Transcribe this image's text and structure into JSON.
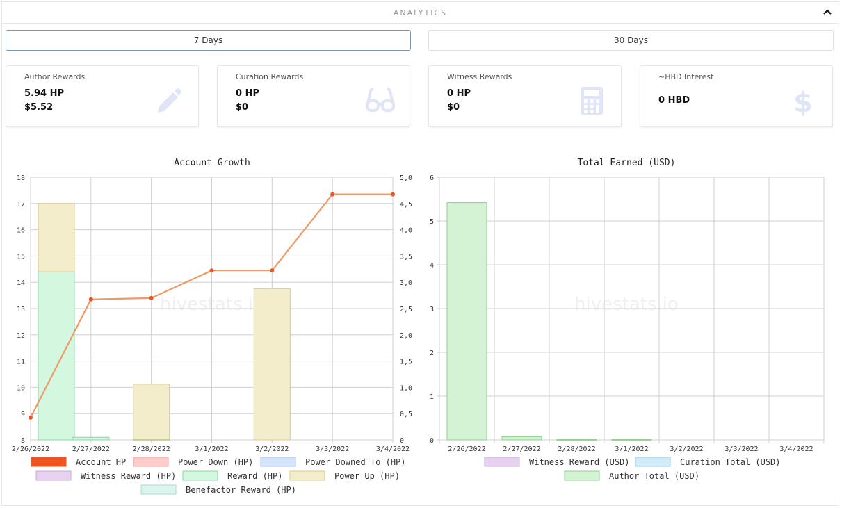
{
  "header": {
    "title": "ANALYTICS"
  },
  "tabs": [
    {
      "label": "7 Days",
      "active": true
    },
    {
      "label": "30 Days",
      "active": false
    }
  ],
  "cards": [
    {
      "label": "Author Rewards",
      "value1": "5.94 HP",
      "value2": "$5.52",
      "icon": "pencil-icon"
    },
    {
      "label": "Curation Rewards",
      "value1": "0 HP",
      "value2": "$0",
      "icon": "glasses-icon"
    },
    {
      "label": "Witness Rewards",
      "value1": "0 HP",
      "value2": "$0",
      "icon": "calculator-icon"
    },
    {
      "label": "~HBD Interest",
      "value1": "0 HBD",
      "icon": "dollar-icon"
    }
  ],
  "watermark": "hivestats.io",
  "colors": {
    "accent": "#7c95b5",
    "card_icon": "#dfe4f7",
    "account_hp": "#ee5522",
    "line": "#ee9966",
    "power_down": "#ffcccc",
    "power_downed_to": "#d6e4fb",
    "witness_reward": "#e6d2ee",
    "reward": "#d4f7e0",
    "power_up": "#f3edcc",
    "benefactor": "#dcf5ef",
    "curation_total": "#d0ecf8",
    "author_total": "#d4f2d4"
  },
  "chart_data": [
    {
      "type": "bar",
      "title": "Account Growth",
      "categories": [
        "2/26/2022",
        "2/27/2022",
        "2/28/2022",
        "3/1/2022",
        "3/2/2022",
        "3/3/2022",
        "3/4/2022"
      ],
      "y_left": {
        "min": 8,
        "max": 18,
        "ticks": [
          "18",
          "17",
          "16",
          "15",
          "14",
          "13",
          "12",
          "11",
          "10",
          "9",
          "8"
        ]
      },
      "y_right": {
        "min": 0,
        "max": 5,
        "ticks": [
          "5,0",
          "4,5",
          "4,0",
          "3,5",
          "3,0",
          "2,5",
          "2,0",
          "1,5",
          "1,0",
          "0,5",
          "0"
        ]
      },
      "line_series": {
        "name": "Account HP",
        "axis": "left",
        "values": [
          8.85,
          13.35,
          13.4,
          14.45,
          14.45,
          17.35,
          17.35
        ]
      },
      "stacked_series": [
        {
          "name": "Reward (HP)",
          "axis": "right",
          "values": [
            3.2,
            0.05,
            0.01,
            0,
            0,
            0,
            0
          ]
        },
        {
          "name": "Power Up (HP)",
          "axis": "right",
          "values": [
            1.3,
            0,
            1.05,
            0,
            2.88,
            0,
            0
          ]
        }
      ],
      "legend": [
        "Account HP",
        "Power Down (HP)",
        "Power Downed To (HP)",
        "Witness Reward (HP)",
        "Reward (HP)",
        "Power Up (HP)",
        "Benefactor Reward (HP)"
      ],
      "legend_position": "bottom",
      "grid": true
    },
    {
      "type": "bar",
      "title": "Total Earned (USD)",
      "categories": [
        "2/26/2022",
        "2/27/2022",
        "2/28/2022",
        "3/1/2022",
        "3/2/2022",
        "3/3/2022",
        "3/4/2022"
      ],
      "y": {
        "min": 0,
        "max": 6,
        "ticks": [
          "6",
          "5",
          "4",
          "3",
          "2",
          "1",
          "0"
        ]
      },
      "series": [
        {
          "name": "Author Total (USD)",
          "values": [
            5.42,
            0.07,
            0.01,
            0.01,
            0,
            0,
            0
          ]
        }
      ],
      "legend": [
        "Witness Reward (USD)",
        "Curation Total (USD)",
        "Author Total (USD)"
      ],
      "legend_position": "bottom",
      "grid": true
    }
  ]
}
